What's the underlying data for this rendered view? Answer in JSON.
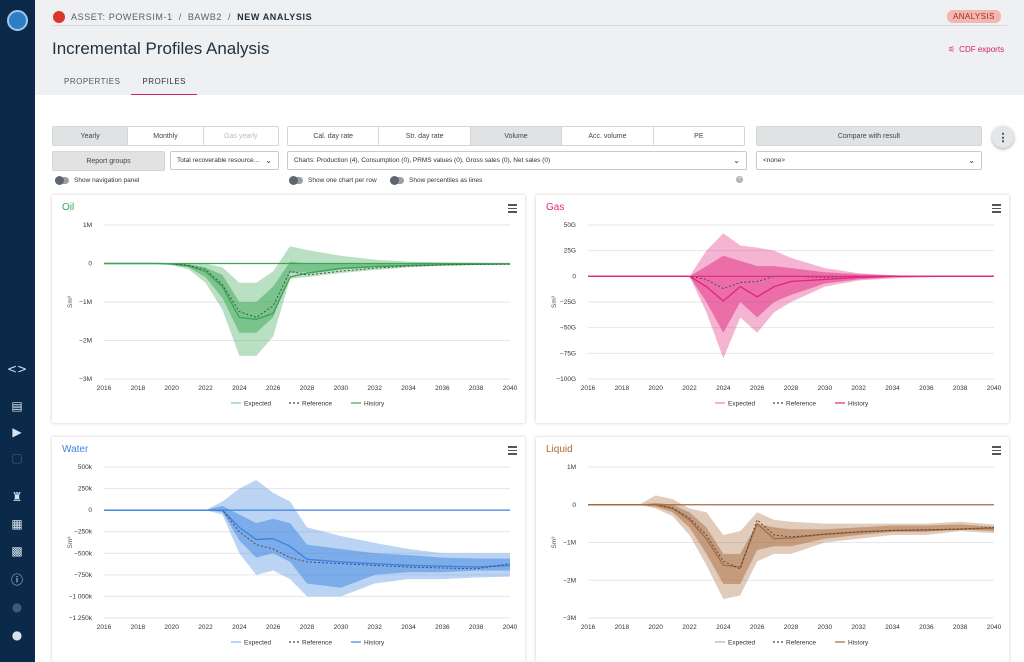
{
  "sidebar": {
    "icons": [
      "code-icon",
      "book-icon",
      "play-icon",
      "comment-icon",
      "rig-icon",
      "building-icon",
      "table-icon",
      "info-icon",
      "user-settings-icon",
      "user-icon"
    ]
  },
  "breadcrumb": {
    "asset": "ASSET: POWERSIM-1",
    "sep1": "/",
    "project": "BAWB2",
    "sep2": "/",
    "current": "NEW ANALYSIS"
  },
  "badge": "ANALYSIS",
  "page_title": "Incremental Profiles Analysis",
  "cdf_exports": "CDF exports",
  "tabs": [
    "PROPERTIES",
    "PROFILES"
  ],
  "controls": {
    "period": [
      "Yearly",
      "Monthly",
      "Gas yearly"
    ],
    "rate": [
      "Cal. day rate",
      "Str. day rate",
      "Volume",
      "Acc. volume",
      "PE"
    ],
    "compare": "Compare with result",
    "report_groups": "Report groups",
    "resource_select": "Total recoverable resource...",
    "charts_select": "Charts: Production (4), Consumption (0), PRMS values (0), Gross sales (0), Net sales (0)",
    "none_select": "<none>",
    "toggle_nav": "Show navigation panel",
    "toggle_one_chart": "Show one chart per row",
    "toggle_percentiles": "Show percentiles as lines",
    "help": "?"
  },
  "legend": {
    "expected": "Expected",
    "reference": "Reference",
    "history": "History"
  },
  "chart_data": [
    {
      "type": "area",
      "title": "Oil",
      "color": "#3aa655",
      "ylabel": "Sm³",
      "x": [
        2016,
        2018,
        2020,
        2022,
        2024,
        2026,
        2028,
        2030,
        2032,
        2034,
        2036,
        2038,
        2040
      ],
      "xticks": [
        "2016",
        "2018",
        "2020",
        "2022",
        "2024",
        "2026",
        "2028",
        "2030",
        "2032",
        "2034",
        "2036",
        "2038",
        "2040"
      ],
      "yticks": [
        "1M",
        "0",
        "−1M",
        "−2M",
        "−3M"
      ],
      "ylim": [
        -3000000,
        1000000
      ],
      "x_series": [
        2016,
        2019,
        2020,
        2021,
        2022,
        2023,
        2024,
        2025,
        2026,
        2027,
        2028,
        2030,
        2032,
        2034,
        2036,
        2038,
        2040
      ],
      "p10": [
        0,
        0,
        -50000,
        -150000,
        -500000,
        -1200000,
        -2400000,
        -2400000,
        -1900000,
        -400000,
        -350000,
        -250000,
        -170000,
        -100000,
        -60000,
        -40000,
        -30000
      ],
      "p30": [
        0,
        0,
        -30000,
        -100000,
        -350000,
        -900000,
        -1800000,
        -1800000,
        -1400000,
        -250000,
        -220000,
        -150000,
        -100000,
        -60000,
        -40000,
        -20000,
        -20000
      ],
      "p70": [
        0,
        0,
        0,
        -20000,
        -100000,
        -300000,
        -1000000,
        -1000000,
        -600000,
        50000,
        0,
        0,
        0,
        0,
        0,
        0,
        0
      ],
      "p90": [
        0,
        0,
        0,
        0,
        0,
        -100000,
        -500000,
        -500000,
        -200000,
        450000,
        350000,
        200000,
        100000,
        50000,
        30000,
        20000,
        10000
      ],
      "expected": [
        0,
        0,
        -10000,
        -60000,
        -200000,
        -600000,
        -1400000,
        -1450000,
        -1300000,
        -350000,
        -250000,
        -130000,
        -80000,
        -50000,
        -30000,
        -20000,
        -10000
      ],
      "reference": [
        0,
        0,
        -10000,
        -50000,
        -150000,
        -550000,
        -1250000,
        -1400000,
        -1100000,
        -200000,
        -300000,
        -200000,
        -120000,
        -70000,
        -40000,
        -20000,
        -20000
      ],
      "history": [
        0,
        0,
        0,
        0,
        0,
        0,
        0,
        0,
        0,
        0,
        0,
        0,
        0,
        0,
        0,
        0,
        0
      ]
    },
    {
      "type": "area",
      "title": "Gas",
      "color": "#e2287f",
      "ylabel": "Sm³",
      "x": [
        2016,
        2018,
        2020,
        2022,
        2024,
        2026,
        2028,
        2030,
        2032,
        2034,
        2036,
        2038,
        2040
      ],
      "xticks": [
        "2016",
        "2018",
        "2020",
        "2022",
        "2024",
        "2026",
        "2028",
        "2030",
        "2032",
        "2034",
        "2036",
        "2038",
        "2040"
      ],
      "yticks": [
        "50G",
        "25G",
        "0",
        "−25G",
        "−50G",
        "−75G",
        "−100G"
      ],
      "ylim": [
        -100000000000,
        50000000000
      ],
      "x_series": [
        2016,
        2020,
        2022,
        2023,
        2024,
        2025,
        2026,
        2027,
        2028,
        2030,
        2032,
        2034,
        2036,
        2038,
        2040
      ],
      "p10": [
        0,
        0,
        0,
        -35000000000.0,
        -80000000000.0,
        -40000000000.0,
        -55000000000.0,
        -35000000000.0,
        -25000000000.0,
        -10000000000.0,
        -4000000000.0,
        -2000000000.0,
        -1000000000.0,
        0,
        0
      ],
      "p30": [
        0,
        0,
        0,
        -25000000000.0,
        -55000000000.0,
        -25000000000.0,
        -40000000000.0,
        -25000000000.0,
        -18000000000.0,
        -7000000000.0,
        -3000000000.0,
        -1000000000.0,
        0,
        0,
        0
      ],
      "p70": [
        0,
        0,
        0,
        10000000000.0,
        20000000000.0,
        15000000000.0,
        10000000000.0,
        10000000000.0,
        8000000000.0,
        4000000000.0,
        2000000000.0,
        1000000000.0,
        0,
        0,
        0
      ],
      "p90": [
        0,
        0,
        0,
        25000000000.0,
        42000000000.0,
        30000000000.0,
        28000000000.0,
        25000000000.0,
        18000000000.0,
        8000000000.0,
        3000000000.0,
        1000000000.0,
        0,
        0,
        0
      ],
      "expected": [
        0,
        0,
        0,
        -10000000000.0,
        -24000000000.0,
        -10000000000.0,
        -20000000000.0,
        -10000000000.0,
        -5000000000.0,
        -3000000000.0,
        -1000000000.0,
        0,
        0,
        0,
        0
      ],
      "reference": [
        0,
        0,
        0,
        -3000000000.0,
        -12000000000.0,
        -6000000000.0,
        -5000000000.0,
        0,
        0,
        -1000000000.0,
        0,
        0,
        0,
        0,
        0
      ],
      "history": [
        0,
        0,
        0,
        0,
        0,
        0,
        0,
        0,
        0,
        0,
        0,
        0,
        0,
        0,
        0
      ]
    },
    {
      "type": "area",
      "title": "Water",
      "color": "#3d85e0",
      "ylabel": "Sm³",
      "x": [
        2016,
        2018,
        2020,
        2022,
        2024,
        2026,
        2028,
        2030,
        2032,
        2034,
        2036,
        2038,
        2040
      ],
      "xticks": [
        "2016",
        "2018",
        "2020",
        "2022",
        "2024",
        "2026",
        "2028",
        "2030",
        "2032",
        "2034",
        "2036",
        "2038",
        "2040"
      ],
      "yticks": [
        "500k",
        "250k",
        "0",
        "−250k",
        "−500k",
        "−750k",
        "−1 000k",
        "−1 250k"
      ],
      "ylim": [
        -1250000,
        500000
      ],
      "x_series": [
        2016,
        2020,
        2022,
        2023,
        2024,
        2025,
        2026,
        2027,
        2028,
        2030,
        2032,
        2034,
        2036,
        2038,
        2040
      ],
      "p10": [
        0,
        0,
        0,
        -50000,
        -500000,
        -750000,
        -700000,
        -800000,
        -1000000,
        -1000000,
        -850000,
        -800000,
        -800000,
        -780000,
        -770000
      ],
      "p30": [
        0,
        0,
        0,
        -20000,
        -350000,
        -550000,
        -500000,
        -600000,
        -850000,
        -900000,
        -750000,
        -720000,
        -720000,
        -700000,
        -700000
      ],
      "p70": [
        0,
        0,
        0,
        50000,
        -50000,
        -150000,
        -100000,
        -150000,
        -400000,
        -450000,
        -500000,
        -520000,
        -550000,
        -560000,
        -560000
      ],
      "p90": [
        0,
        0,
        0,
        100000,
        250000,
        350000,
        200000,
        100000,
        -200000,
        -300000,
        -380000,
        -450000,
        -500000,
        -500000,
        -500000
      ],
      "expected": [
        0,
        0,
        0,
        0,
        -200000,
        -340000,
        -330000,
        -420000,
        -570000,
        -600000,
        -620000,
        -640000,
        -650000,
        -660000,
        -640000
      ],
      "reference": [
        0,
        0,
        0,
        0,
        -250000,
        -400000,
        -450000,
        -550000,
        -600000,
        -620000,
        -640000,
        -660000,
        -670000,
        -680000,
        -620000
      ],
      "history": [
        0,
        0,
        0,
        0,
        0,
        0,
        0,
        0,
        0,
        0,
        0,
        0,
        0,
        0,
        0
      ]
    },
    {
      "type": "area",
      "title": "Liquid",
      "color": "#a86c3e",
      "ylabel": "Sm³",
      "x": [
        2016,
        2018,
        2020,
        2022,
        2024,
        2026,
        2028,
        2030,
        2032,
        2034,
        2036,
        2038,
        2040
      ],
      "xticks": [
        "2016",
        "2018",
        "2020",
        "2022",
        "2024",
        "2026",
        "2028",
        "2030",
        "2032",
        "2034",
        "2036",
        "2038",
        "2040"
      ],
      "yticks": [
        "1M",
        "0",
        "−1M",
        "−2M",
        "−3M"
      ],
      "ylim": [
        -3000000,
        1000000
      ],
      "x_series": [
        2016,
        2019,
        2020,
        2021,
        2022,
        2023,
        2024,
        2025,
        2026,
        2027,
        2028,
        2030,
        2032,
        2034,
        2036,
        2038,
        2040
      ],
      "p10": [
        0,
        0,
        -100000,
        -300000,
        -800000,
        -1600000,
        -2500000,
        -2400000,
        -1500000,
        -1300000,
        -1300000,
        -1000000,
        -900000,
        -800000,
        -800000,
        -700000,
        -750000
      ],
      "p30": [
        0,
        0,
        -50000,
        -200000,
        -600000,
        -1300000,
        -2100000,
        -2100000,
        -1200000,
        -1100000,
        -1100000,
        -900000,
        -800000,
        -720000,
        -720000,
        -650000,
        -700000
      ],
      "p70": [
        0,
        0,
        50000,
        0,
        -200000,
        -600000,
        -1300000,
        -1300000,
        -500000,
        -600000,
        -650000,
        -650000,
        -600000,
        -550000,
        -550000,
        -520000,
        -580000
      ],
      "p90": [
        0,
        0,
        250000,
        150000,
        -100000,
        -200000,
        -800000,
        -700000,
        -200000,
        -400000,
        -450000,
        -500000,
        -500000,
        -500000,
        -500000,
        -450000,
        -520000
      ],
      "expected": [
        0,
        0,
        0,
        -100000,
        -400000,
        -900000,
        -1600000,
        -1650000,
        -500000,
        -900000,
        -880000,
        -780000,
        -720000,
        -680000,
        -670000,
        -650000,
        -620000
      ],
      "reference": [
        0,
        0,
        0,
        -80000,
        -350000,
        -800000,
        -1500000,
        -1700000,
        -400000,
        -800000,
        -850000,
        -780000,
        -720000,
        -680000,
        -660000,
        -640000,
        -600000
      ],
      "history": [
        0,
        0,
        0,
        0,
        0,
        0,
        0,
        0,
        0,
        0,
        0,
        0,
        0,
        0,
        0,
        0,
        0
      ]
    }
  ]
}
